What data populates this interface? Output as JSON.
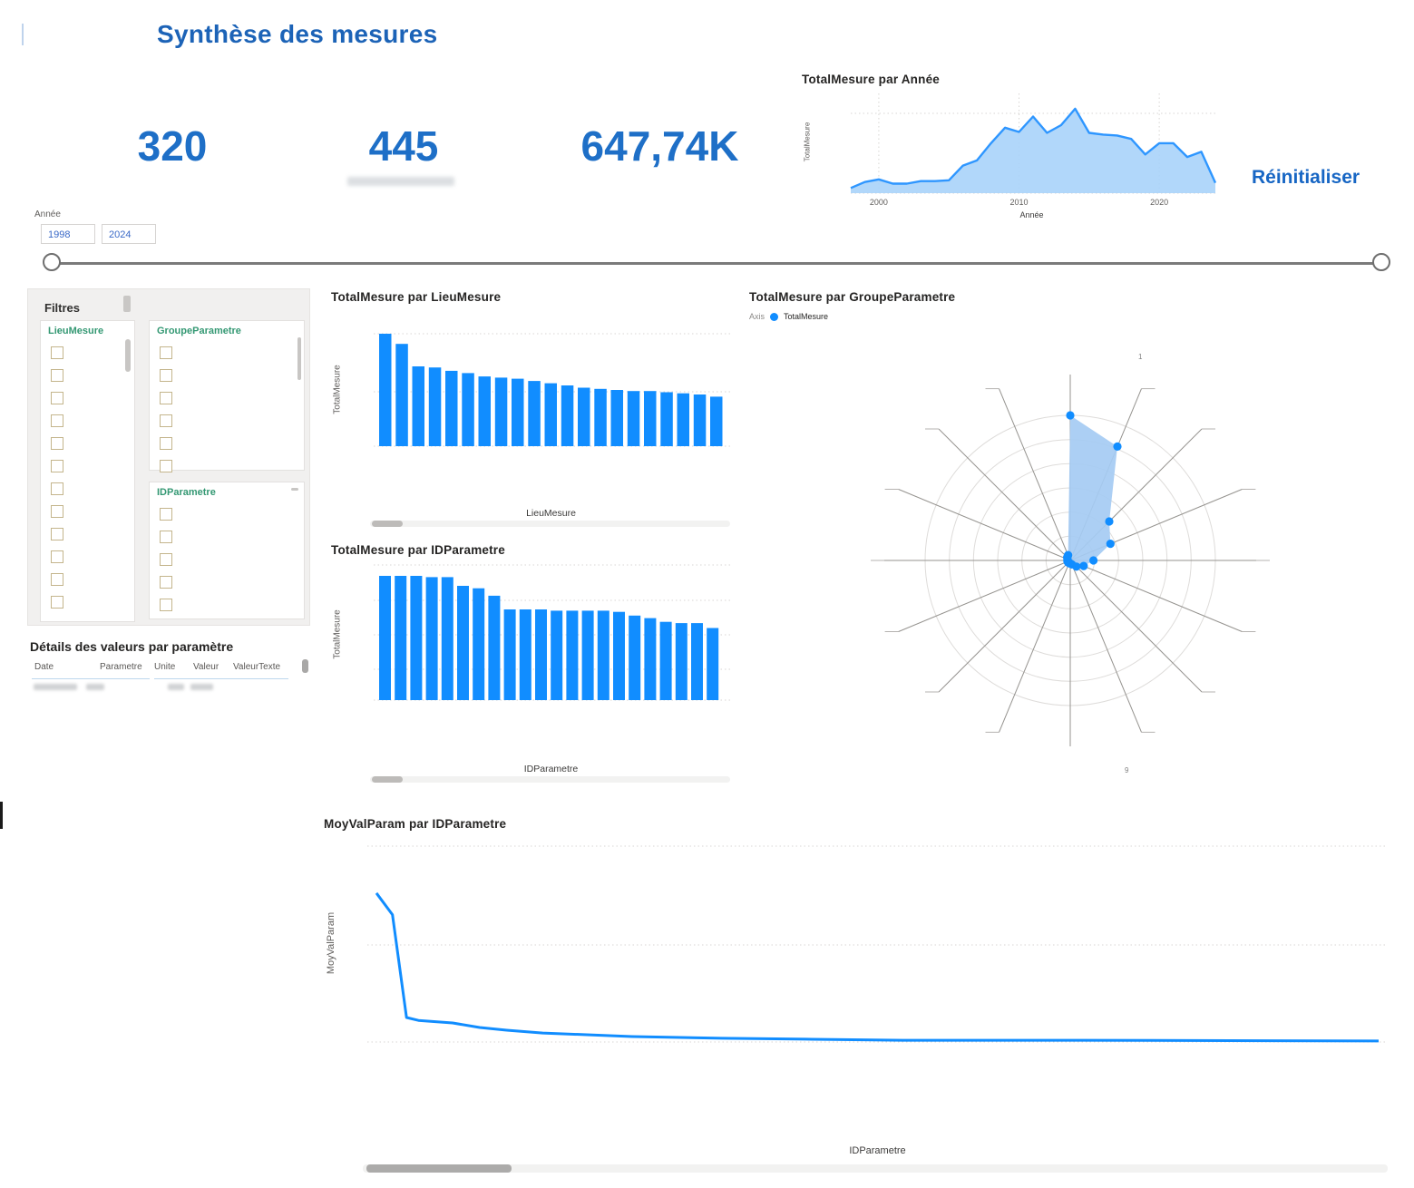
{
  "page": {
    "title": "Synthèse des mesures",
    "reset_label": "Réinitialiser"
  },
  "kpis": [
    {
      "value": "320"
    },
    {
      "value": "445"
    },
    {
      "value": "647,74K"
    }
  ],
  "slider": {
    "label": "Année",
    "min": "1998",
    "max": "2024"
  },
  "filters": {
    "title": "Filtres",
    "groups": [
      {
        "label": "LieuMesure",
        "checkbox_count": 12
      },
      {
        "label": "GroupeParametre",
        "checkbox_count": 6
      },
      {
        "label": "IDParametre",
        "checkbox_count": 5
      }
    ]
  },
  "details_table": {
    "title": "Détails des valeurs par paramètre",
    "columns": [
      "Date",
      "Parametre",
      "Unite",
      "Valeur",
      "ValeurTexte"
    ]
  },
  "colors": {
    "accent_blue": "#118DFF",
    "area_line": "#2E96FF",
    "area_fill": "#A9D3F9",
    "radar_fill": "#A5CBF3",
    "title_blue": "#1C63B7",
    "kpi_blue": "#1E6FC7",
    "filter_header_green": "#349873"
  },
  "chart_data": [
    {
      "id": "area-annee",
      "type": "area",
      "title": "TotalMesure par Année",
      "xlabel": "Année",
      "ylabel": "TotalMesure",
      "x": [
        1998,
        1999,
        2000,
        2001,
        2002,
        2003,
        2004,
        2005,
        2006,
        2007,
        2008,
        2009,
        2010,
        2011,
        2012,
        2013,
        2014,
        2015,
        2016,
        2017,
        2018,
        2019,
        2020,
        2021,
        2022,
        2023,
        2024
      ],
      "values": [
        6,
        13,
        16,
        11,
        11,
        14,
        14,
        15,
        32,
        38,
        58,
        76,
        71,
        89,
        70,
        79,
        98,
        70,
        68,
        67,
        63,
        45,
        58,
        58,
        42,
        48,
        12
      ],
      "x_ticks": [
        2000,
        2010,
        2020
      ],
      "ylim": [
        0,
        100
      ],
      "grid": true
    },
    {
      "id": "bars-lieu",
      "type": "bar",
      "title": "TotalMesure par LieuMesure",
      "xlabel": "LieuMesure",
      "ylabel": "TotalMesure",
      "categories": [],
      "values": [
        100,
        91,
        71,
        70,
        67,
        65,
        62,
        61,
        60,
        58,
        56,
        54,
        52,
        51,
        50,
        49,
        49,
        48,
        47,
        46,
        44
      ],
      "ylim": [
        0,
        100
      ],
      "note": "category labels not visible in screenshot"
    },
    {
      "id": "bars-idparam",
      "type": "bar",
      "title": "TotalMesure par IDParametre",
      "xlabel": "IDParametre",
      "ylabel": "TotalMesure",
      "categories": [],
      "values": [
        100,
        100,
        100,
        99,
        99,
        92,
        90,
        84,
        73,
        73,
        73,
        72,
        72,
        72,
        72,
        71,
        68,
        66,
        63,
        62,
        62,
        58
      ],
      "ylim": [
        0,
        100
      ],
      "note": "category labels not visible in screenshot"
    },
    {
      "id": "radar-groupe",
      "type": "radar",
      "title": "TotalMesure par GroupeParametre",
      "legend": {
        "axis_label": "Axis",
        "series_label": "TotalMesure"
      },
      "axes_count": 16,
      "values": [
        100,
        85,
        38,
        30,
        16,
        10,
        6,
        3,
        2,
        2,
        2,
        2,
        2,
        2,
        3,
        4
      ],
      "label_fragments": [
        "1",
        "9"
      ],
      "note": "spoke labels not legible in screenshot"
    },
    {
      "id": "line-moyval",
      "type": "line",
      "title": "MoyValParam par IDParametre",
      "xlabel": "IDParametre",
      "ylabel": "MoyValParam",
      "points": [
        [
          0,
          76
        ],
        [
          1.6,
          65
        ],
        [
          3,
          12.5
        ],
        [
          4.2,
          11
        ],
        [
          7.6,
          9.7
        ],
        [
          10.3,
          7.4
        ],
        [
          13,
          6
        ],
        [
          16.6,
          4.6
        ],
        [
          21,
          3.7
        ],
        [
          25.5,
          2.8
        ],
        [
          34.5,
          1.9
        ],
        [
          43.5,
          1.4
        ],
        [
          52.5,
          0.9
        ],
        [
          70.5,
          0.9
        ],
        [
          100,
          0.5
        ]
      ],
      "ylim": [
        0,
        100
      ],
      "grid": true
    }
  ]
}
